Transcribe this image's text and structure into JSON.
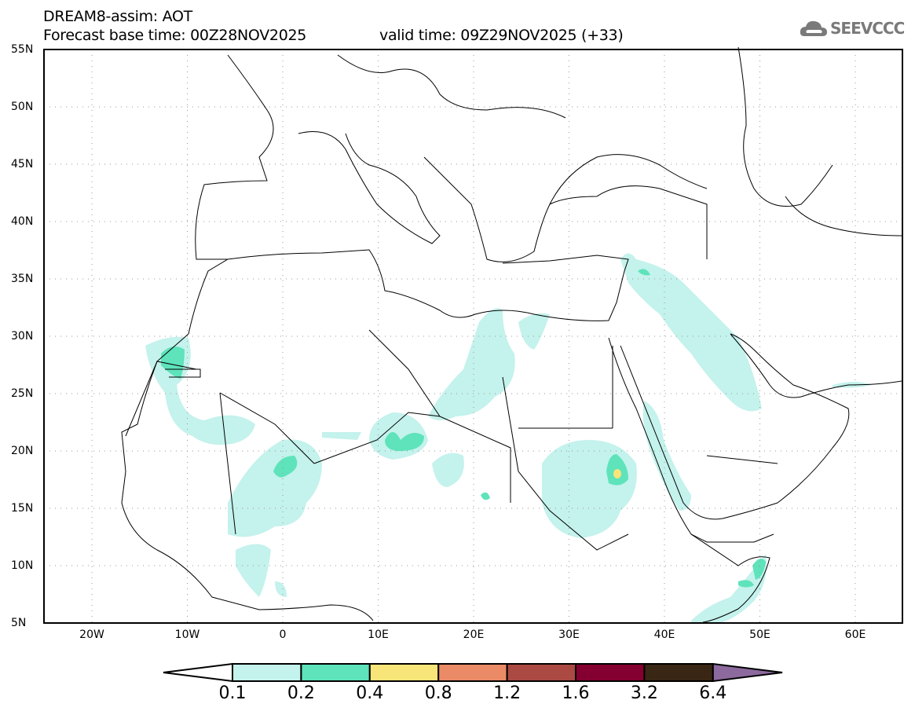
{
  "header": {
    "title": "DREAM8-assim: AOT",
    "base_time": "Forecast base time: 00Z28NOV2025",
    "valid_time": "valid time: 09Z29NOV2025 (+33)",
    "logo_text": "SEEVCCC"
  },
  "map": {
    "variable": "AOT",
    "lat_labels": [
      "55N",
      "50N",
      "45N",
      "40N",
      "35N",
      "30N",
      "25N",
      "20N",
      "15N",
      "10N",
      "5N"
    ],
    "lon_labels": [
      "20W",
      "10W",
      "0",
      "10E",
      "20E",
      "30E",
      "40E",
      "50E",
      "60E"
    ],
    "extent_deg": {
      "lon": [
        -25,
        65
      ],
      "lat": [
        5,
        55
      ]
    }
  },
  "colorbar": {
    "labels": [
      "0.1",
      "0.2",
      "0.4",
      "0.8",
      "1.2",
      "1.6",
      "3.2",
      "6.4"
    ],
    "colors": [
      "#ffffff",
      "#c4f2ec",
      "#5ee3bb",
      "#f8e57a",
      "#eb8a66",
      "#aa4a42",
      "#830030",
      "#3a2614",
      "#8c6a9e"
    ]
  }
}
